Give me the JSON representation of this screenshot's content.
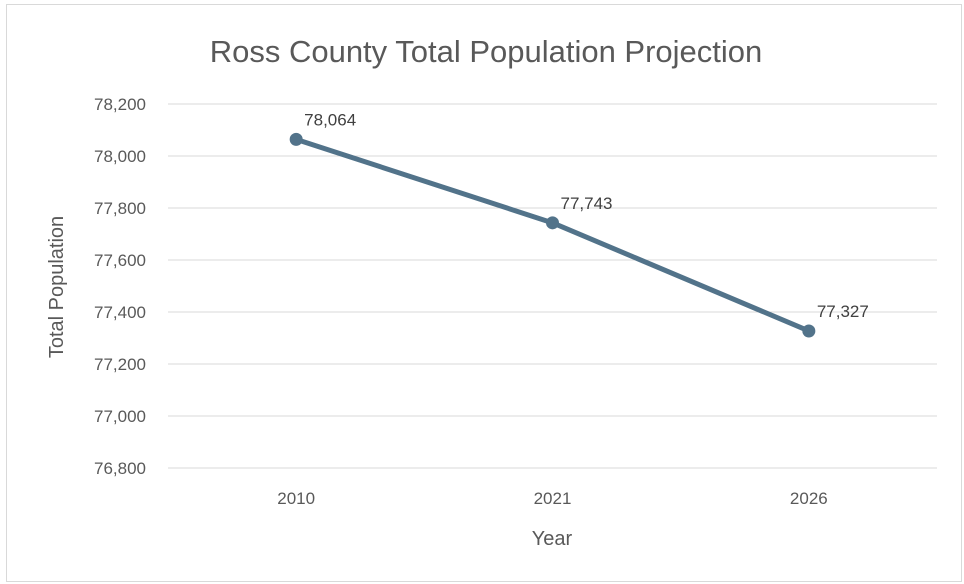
{
  "chart_data": {
    "type": "line",
    "title": "Ross County Total Population Projection",
    "xlabel": "Year",
    "ylabel": "Total Population",
    "categories": [
      "2010",
      "2021",
      "2026"
    ],
    "series": [
      {
        "values": [
          78064,
          77743,
          77327
        ],
        "data_labels": [
          "78,064",
          "77,743",
          "77,327"
        ],
        "color": "#52738a"
      }
    ],
    "ylim": [
      76800,
      78200
    ],
    "yticks": [
      76800,
      77000,
      77200,
      77400,
      77600,
      77800,
      78000,
      78200
    ],
    "ytick_labels": [
      "76,800",
      "77,000",
      "77,200",
      "77,400",
      "77,600",
      "77,800",
      "78,000",
      "78,200"
    ],
    "grid": true,
    "gridline_color": "#d9d9d9",
    "legend": "none"
  }
}
